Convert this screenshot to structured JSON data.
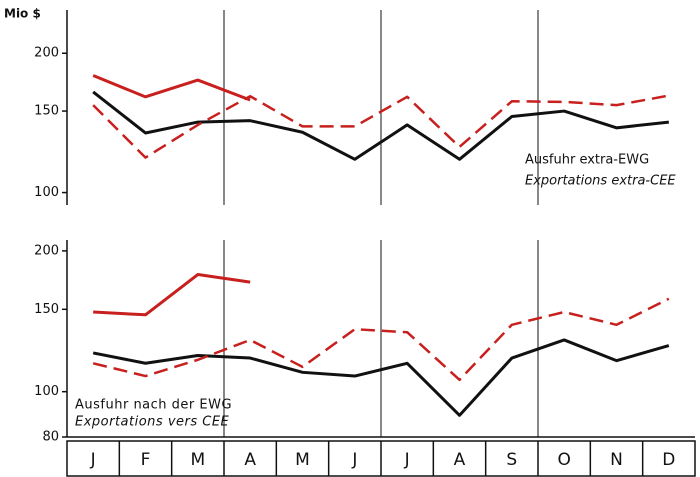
{
  "chart_data": [
    {
      "type": "line",
      "log_scale": true,
      "y_label": "Mio $",
      "annotation": "Ausfuhr extra-EWG",
      "annotation_2": "Exportations extra-CEE",
      "ylim": [
        94,
        248
      ],
      "yticks": [
        100,
        150,
        200
      ],
      "series": [
        {
          "color": "#111111",
          "dashed": false,
          "values": [
            165,
            134.5,
            142,
            143,
            135,
            118,
            140,
            118,
            146,
            150,
            138,
            142
          ]
        },
        {
          "color": "#c8201e",
          "dashed": true,
          "values": [
            154.5,
            119,
            140,
            161.5,
            139,
            139,
            161,
            125.5,
            157.5,
            157,
            154.5,
            162
          ]
        },
        {
          "color": "#c8201e",
          "dashed": false,
          "values": [
            179,
            161,
            175,
            158.5,
            null,
            null,
            null,
            null,
            null,
            null,
            null,
            null
          ]
        }
      ]
    },
    {
      "type": "line",
      "log_scale": true,
      "annotation": "Ausfuhr nach der EWG",
      "annotation_2": "Exportations vers CEE",
      "categories": [
        "J",
        "F",
        "M",
        "A",
        "M",
        "J",
        "J",
        "A",
        "S",
        "O",
        "N",
        "D"
      ],
      "ylim": [
        80,
        211
      ],
      "yticks": [
        80,
        100,
        150,
        200
      ],
      "series": [
        {
          "color": "#111111",
          "dashed": false,
          "values": [
            121,
            115,
            119.5,
            118,
            110,
            108,
            115,
            89,
            118,
            129,
            116.5,
            125.5
          ]
        },
        {
          "color": "#c8201e",
          "dashed": true,
          "values": [
            115,
            108,
            117,
            129,
            113,
            136,
            134,
            106,
            139,
            148,
            139,
            158
          ]
        },
        {
          "color": "#c8201e",
          "dashed": false,
          "values": [
            148,
            146,
            178,
            171.5,
            null,
            null,
            null,
            null,
            null,
            null,
            null,
            null
          ]
        }
      ]
    }
  ]
}
